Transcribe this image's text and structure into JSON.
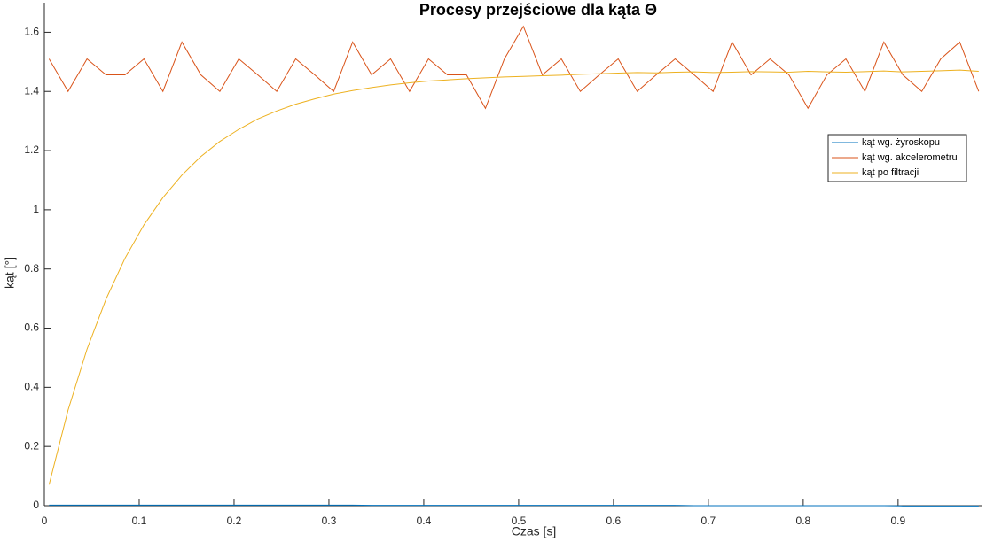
{
  "chart_data": {
    "type": "line",
    "title": "Procesy przejściowe dla kąta Θ",
    "x_label": "Czas [s]",
    "y_label": "kąt [°]",
    "x": [
      0.005,
      0.025,
      0.045,
      0.065,
      0.085,
      0.105,
      0.125,
      0.145,
      0.165,
      0.185,
      0.205,
      0.225,
      0.245,
      0.265,
      0.285,
      0.305,
      0.325,
      0.345,
      0.365,
      0.385,
      0.405,
      0.425,
      0.445,
      0.465,
      0.485,
      0.505,
      0.525,
      0.545,
      0.565,
      0.585,
      0.605,
      0.625,
      0.645,
      0.665,
      0.685,
      0.705,
      0.725,
      0.745,
      0.765,
      0.785,
      0.805,
      0.825,
      0.845,
      0.865,
      0.885,
      0.905,
      0.925,
      0.945,
      0.965,
      0.985
    ],
    "series": [
      {
        "name": "kąt wg. żyroskopu",
        "color": "#0072BD",
        "values": [
          0.002,
          0.002,
          0.002,
          0.002,
          0.002,
          0.002,
          0.002,
          0.002,
          0.002,
          0.002,
          0.002,
          0.002,
          0.002,
          0.002,
          0.002,
          0.002,
          0.002,
          0.001,
          0.001,
          0.001,
          0.001,
          0.001,
          0.001,
          0.001,
          0.001,
          0.001,
          0.001,
          0.001,
          0.001,
          0.001,
          0.001,
          0.001,
          0.001,
          0.001,
          0,
          0,
          0,
          0,
          0,
          0,
          0,
          0,
          0,
          0,
          0,
          -0.001,
          -0.001,
          -0.001,
          -0.001,
          -0.001
        ]
      },
      {
        "name": "kąt wg. akcelerometru",
        "color": "#D95319",
        "values": [
          1.51,
          1.4,
          1.51,
          1.456,
          1.456,
          1.51,
          1.4,
          1.567,
          1.456,
          1.4,
          1.51,
          1.456,
          1.4,
          1.51,
          1.456,
          1.4,
          1.567,
          1.456,
          1.51,
          1.4,
          1.51,
          1.456,
          1.456,
          1.343,
          1.51,
          1.62,
          1.456,
          1.51,
          1.4,
          1.456,
          1.51,
          1.4,
          1.456,
          1.51,
          1.456,
          1.4,
          1.567,
          1.456,
          1.51,
          1.456,
          1.343,
          1.456,
          1.51,
          1.4,
          1.567,
          1.456,
          1.4,
          1.51,
          1.567,
          1.4
        ]
      },
      {
        "name": "kąt po filtracji",
        "color": "#EDB120",
        "values": [
          0.071,
          0.323,
          0.529,
          0.698,
          0.836,
          0.949,
          1.041,
          1.117,
          1.18,
          1.231,
          1.272,
          1.307,
          1.334,
          1.357,
          1.375,
          1.391,
          1.403,
          1.413,
          1.422,
          1.429,
          1.435,
          1.439,
          1.443,
          1.446,
          1.449,
          1.451,
          1.453,
          1.455,
          1.458,
          1.46,
          1.462,
          1.464,
          1.463,
          1.465,
          1.466,
          1.464,
          1.465,
          1.467,
          1.466,
          1.465,
          1.468,
          1.466,
          1.465,
          1.467,
          1.469,
          1.466,
          1.468,
          1.47,
          1.472,
          1.468
        ]
      }
    ],
    "xlim": [
      0,
      0.988
    ],
    "ylim": [
      0,
      1.7
    ],
    "xticks": [
      0,
      0.1,
      0.2,
      0.3,
      0.4,
      0.5,
      0.6,
      0.7,
      0.8,
      0.9
    ],
    "yticks": [
      0,
      0.2,
      0.4,
      0.6,
      0.8,
      1,
      1.2,
      1.4,
      1.6
    ],
    "grid": false,
    "legend": "northeast"
  }
}
